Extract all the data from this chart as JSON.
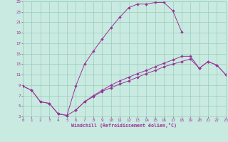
{
  "bg_color": "#c8eae0",
  "line_color": "#993399",
  "grid_color": "#99ccbb",
  "xlabel": "Windchill (Refroidissement éolien,°C)",
  "curve1_x": [
    0,
    1,
    2,
    3,
    4,
    5,
    6,
    7,
    8,
    9,
    10,
    11,
    12,
    13,
    14,
    15,
    16,
    17,
    18
  ],
  "curve1_y": [
    8.8,
    8.0,
    5.8,
    5.5,
    3.5,
    3.2,
    8.8,
    13.0,
    15.5,
    17.8,
    20.0,
    22.0,
    23.8,
    24.5,
    24.5,
    24.8,
    24.8,
    23.2,
    19.2
  ],
  "curve2_x": [
    0,
    1,
    2,
    3,
    4,
    5,
    6,
    7,
    8,
    9,
    10,
    11,
    12,
    13,
    14,
    15,
    16,
    17,
    18,
    19,
    20,
    21,
    22,
    23
  ],
  "curve2_y": [
    8.8,
    8.0,
    5.8,
    5.5,
    3.5,
    3.2,
    4.2,
    5.8,
    7.0,
    8.0,
    9.0,
    9.8,
    10.5,
    11.2,
    11.8,
    12.5,
    13.2,
    13.8,
    14.5,
    14.5,
    12.2,
    13.5,
    12.8,
    11.0
  ],
  "curve3_x": [
    6,
    7,
    8,
    9,
    10,
    11,
    12,
    13,
    14,
    15,
    16,
    17,
    18,
    19,
    20,
    21,
    22,
    23
  ],
  "curve3_y": [
    4.2,
    5.8,
    6.8,
    7.8,
    8.5,
    9.2,
    9.8,
    10.5,
    11.2,
    11.8,
    12.5,
    13.0,
    13.5,
    14.0,
    12.2,
    13.5,
    12.8,
    11.0
  ],
  "xlim": [
    0,
    23
  ],
  "ylim": [
    3,
    25
  ],
  "xticks": [
    0,
    1,
    2,
    3,
    4,
    5,
    6,
    7,
    8,
    9,
    10,
    11,
    12,
    13,
    14,
    15,
    16,
    17,
    18,
    19,
    20,
    21,
    22,
    23
  ],
  "yticks": [
    3,
    5,
    7,
    9,
    11,
    13,
    15,
    17,
    19,
    21,
    23,
    25
  ]
}
